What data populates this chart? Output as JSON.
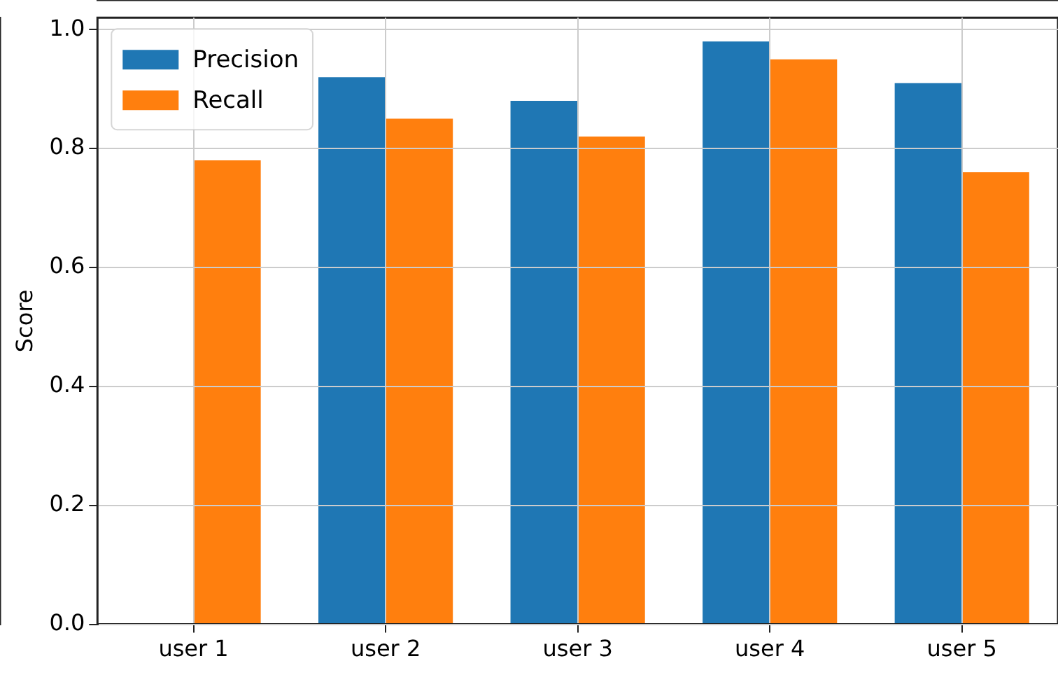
{
  "chart_data": {
    "type": "bar",
    "ylabel": "Score",
    "categories": [
      "user 1",
      "user 2",
      "user 3",
      "user 4",
      "user 5"
    ],
    "series": [
      {
        "name": "Precision",
        "color": "#1f77b4",
        "values": [
          null,
          0.92,
          0.88,
          0.98,
          0.91
        ]
      },
      {
        "name": "Recall",
        "color": "#ff7f0e",
        "values": [
          0.78,
          0.85,
          0.82,
          0.95,
          0.76
        ]
      }
    ],
    "ylim": [
      0,
      1.02
    ],
    "yticks": [
      {
        "value": 0,
        "label": "0.0"
      },
      {
        "value": 0.2,
        "label": "0.2"
      },
      {
        "value": 0.4,
        "label": "0.4"
      },
      {
        "value": 0.6,
        "label": "0.6"
      },
      {
        "value": 0.8,
        "label": "0.8"
      },
      {
        "value": 1,
        "label": "1.0"
      }
    ],
    "grid": true,
    "legend": "top left"
  }
}
